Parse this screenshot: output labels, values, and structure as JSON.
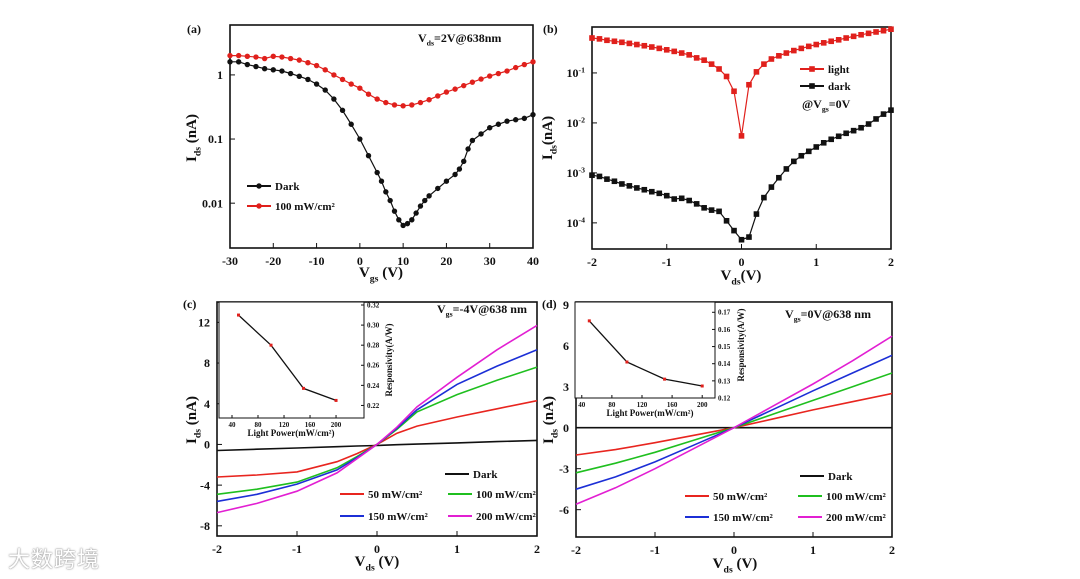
{
  "watermark": "大数跨境",
  "chart_data": [
    {
      "id": "a",
      "type": "line",
      "panel_label": "(a)",
      "annotation": "V_ds=2V@638nm",
      "xlabel": "V_gs (V)",
      "ylabel": "I_ds (nA)",
      "xlim": [
        -30,
        40
      ],
      "ylim": [
        0.002,
        6
      ],
      "yscale": "log",
      "xticks": [
        -30,
        -20,
        -10,
        0,
        10,
        20,
        30,
        40
      ],
      "xtick_labels": [
        "-30",
        "-20",
        "-10",
        "0",
        "10",
        "20",
        "30",
        "40"
      ],
      "yticks": [
        1,
        0.1,
        0.01
      ],
      "ytick_labels": [
        "1",
        "0.1",
        "0.01"
      ],
      "legend": "bottom-left",
      "series": [
        {
          "name": "Dark",
          "color": "#111111",
          "marker": "circle",
          "x": [
            -30,
            -28,
            -26,
            -24,
            -22,
            -20,
            -18,
            -16,
            -14,
            -12,
            -10,
            -8,
            -6,
            -4,
            -2,
            0,
            2,
            4,
            5,
            6,
            7,
            8,
            9,
            10,
            11,
            12,
            13,
            14,
            15,
            16,
            18,
            20,
            22,
            23,
            24,
            25,
            26,
            28,
            30,
            32,
            34,
            36,
            38,
            40
          ],
          "y": [
            1.6,
            1.6,
            1.45,
            1.35,
            1.25,
            1.2,
            1.15,
            1.05,
            0.95,
            0.85,
            0.72,
            0.58,
            0.42,
            0.28,
            0.17,
            0.1,
            0.055,
            0.03,
            0.022,
            0.015,
            0.011,
            0.0075,
            0.0055,
            0.0045,
            0.0048,
            0.0055,
            0.007,
            0.009,
            0.011,
            0.013,
            0.017,
            0.022,
            0.028,
            0.034,
            0.045,
            0.07,
            0.095,
            0.12,
            0.15,
            0.17,
            0.19,
            0.2,
            0.21,
            0.24
          ]
        },
        {
          "name": "100 mW/cm²",
          "color": "#e0201c",
          "marker": "circle",
          "x": [
            -30,
            -28,
            -26,
            -24,
            -22,
            -20,
            -18,
            -16,
            -14,
            -12,
            -10,
            -8,
            -6,
            -4,
            -2,
            0,
            2,
            4,
            6,
            8,
            10,
            12,
            14,
            16,
            18,
            20,
            22,
            24,
            26,
            28,
            30,
            32,
            34,
            36,
            38,
            40
          ],
          "y": [
            2.0,
            2.0,
            1.95,
            1.9,
            1.8,
            1.95,
            1.9,
            1.8,
            1.7,
            1.55,
            1.4,
            1.2,
            1.0,
            0.85,
            0.72,
            0.62,
            0.5,
            0.42,
            0.37,
            0.34,
            0.33,
            0.34,
            0.37,
            0.41,
            0.47,
            0.54,
            0.6,
            0.68,
            0.77,
            0.86,
            0.96,
            1.05,
            1.15,
            1.3,
            1.45,
            1.6
          ]
        }
      ]
    },
    {
      "id": "b",
      "type": "line",
      "panel_label": "(b)",
      "annotation": "@V_gs=0V",
      "xlabel": "V_ds(V)",
      "ylabel": "I_ds(nA)",
      "xlim": [
        -2,
        2
      ],
      "ylim": [
        3e-05,
        0.83
      ],
      "yscale": "log",
      "xticks": [
        -2,
        -1,
        0,
        1,
        2
      ],
      "xtick_labels": [
        "-2",
        "-1",
        "0",
        "1",
        "2"
      ],
      "yticks": [
        0.1,
        0.01,
        0.001,
        0.0001
      ],
      "ytick_labels": [
        "10^-1",
        "10^-2",
        "10^-3",
        "10^-4"
      ],
      "legend": "top-right",
      "series": [
        {
          "name": "light",
          "color": "#e0201c",
          "marker": "square",
          "x": [
            -2,
            -1.9,
            -1.8,
            -1.7,
            -1.6,
            -1.5,
            -1.4,
            -1.3,
            -1.2,
            -1.1,
            -1,
            -0.9,
            -0.8,
            -0.7,
            -0.6,
            -0.5,
            -0.4,
            -0.3,
            -0.2,
            -0.1,
            0,
            0.1,
            0.2,
            0.3,
            0.4,
            0.5,
            0.6,
            0.7,
            0.8,
            0.9,
            1,
            1.1,
            1.2,
            1.3,
            1.4,
            1.5,
            1.6,
            1.7,
            1.8,
            1.9,
            2
          ],
          "y": [
            0.5,
            0.48,
            0.45,
            0.43,
            0.41,
            0.39,
            0.37,
            0.35,
            0.33,
            0.31,
            0.29,
            0.27,
            0.25,
            0.23,
            0.2,
            0.18,
            0.15,
            0.12,
            0.085,
            0.043,
            0.0055,
            0.058,
            0.105,
            0.15,
            0.19,
            0.22,
            0.25,
            0.28,
            0.31,
            0.34,
            0.37,
            0.4,
            0.43,
            0.46,
            0.5,
            0.54,
            0.58,
            0.62,
            0.66,
            0.7,
            0.75
          ]
        },
        {
          "name": "dark",
          "color": "#111111",
          "marker": "square",
          "x": [
            -2,
            -1.9,
            -1.8,
            -1.7,
            -1.6,
            -1.5,
            -1.4,
            -1.3,
            -1.2,
            -1.1,
            -1,
            -0.9,
            -0.8,
            -0.7,
            -0.6,
            -0.5,
            -0.4,
            -0.3,
            -0.2,
            -0.1,
            0,
            0.1,
            0.2,
            0.3,
            0.4,
            0.5,
            0.6,
            0.7,
            0.8,
            0.9,
            1,
            1.1,
            1.2,
            1.3,
            1.4,
            1.5,
            1.6,
            1.7,
            1.8,
            1.9,
            2
          ],
          "y": [
            0.0009,
            0.00085,
            0.00075,
            0.00068,
            0.0006,
            0.00055,
            0.0005,
            0.00046,
            0.00042,
            0.00039,
            0.00035,
            0.0003,
            0.00031,
            0.00028,
            0.00024,
            0.0002,
            0.00018,
            0.00017,
            0.00011,
            7e-05,
            4.6e-05,
            5.2e-05,
            0.00015,
            0.00032,
            0.00052,
            0.0008,
            0.0012,
            0.0017,
            0.0022,
            0.0027,
            0.0033,
            0.004,
            0.0047,
            0.0054,
            0.0062,
            0.007,
            0.008,
            0.0095,
            0.012,
            0.015,
            0.018
          ]
        }
      ]
    },
    {
      "id": "c",
      "type": "line",
      "panel_label": "(c)",
      "annotation": "V_gs=-4V@638 nm",
      "xlabel": "V_ds (V)",
      "ylabel": "I_ds (nA)",
      "xlim": [
        -2,
        2
      ],
      "ylim": [
        -9,
        14
      ],
      "xticks": [
        -2,
        -1,
        0,
        1,
        2
      ],
      "xtick_labels": [
        "-2",
        "-1",
        "0",
        "1",
        "2"
      ],
      "yticks": [
        12,
        8,
        4,
        0,
        -4,
        -8
      ],
      "ytick_labels": [
        "12",
        "8",
        "4",
        "0",
        "-4",
        "-8"
      ],
      "legend": "bottom-right",
      "x": [
        -2,
        -1.5,
        -1,
        -0.5,
        -0.25,
        0,
        0.25,
        0.5,
        1,
        1.5,
        2
      ],
      "series": [
        {
          "name": "Dark",
          "color": "#111111",
          "y": [
            -0.6,
            -0.47,
            -0.35,
            -0.22,
            -0.15,
            -0.1,
            -0.03,
            0.03,
            0.15,
            0.28,
            0.4
          ]
        },
        {
          "name": "50 mW/cm²",
          "color": "#e8251f",
          "y": [
            -3.2,
            -3.0,
            -2.7,
            -1.7,
            -0.9,
            0,
            1.1,
            1.8,
            2.7,
            3.5,
            4.3
          ]
        },
        {
          "name": "100 mW/cm²",
          "color": "#1fbf1f",
          "y": [
            -4.9,
            -4.4,
            -3.7,
            -2.3,
            -1.2,
            0,
            1.5,
            3.2,
            4.9,
            6.3,
            7.6
          ]
        },
        {
          "name": "150 mW/cm²",
          "color": "#1c2fd6",
          "y": [
            -5.6,
            -4.9,
            -3.9,
            -2.5,
            -1.3,
            0,
            1.6,
            3.4,
            5.9,
            7.7,
            9.3
          ]
        },
        {
          "name": "200 mW/cm²",
          "color": "#e21fd2",
          "y": [
            -6.7,
            -5.8,
            -4.6,
            -2.8,
            -1.4,
            0,
            1.7,
            3.7,
            6.6,
            9.3,
            11.7
          ]
        }
      ],
      "inset": {
        "type": "line",
        "xlabel": "Light Power(mW/cm²)",
        "ylabel": "Responsivity(A/W)",
        "xlim": [
          20,
          243
        ],
        "ylim": [
          0.2075,
          0.323
        ],
        "xticks": [
          40,
          80,
          120,
          160,
          200
        ],
        "xtick_labels": [
          "40",
          "80",
          "120",
          "160",
          "200"
        ],
        "yticks": [
          0.22,
          0.24,
          0.26,
          0.28,
          0.3,
          0.32
        ],
        "ytick_labels": [
          "0.22",
          "0.24",
          "0.26",
          "0.28",
          "0.30",
          "0.32"
        ],
        "x": [
          50,
          100,
          150,
          200
        ],
        "y": [
          0.31,
          0.28,
          0.237,
          0.225
        ]
      }
    },
    {
      "id": "d",
      "type": "line",
      "panel_label": "(d)",
      "annotation": "V_gs=0V@638 nm",
      "xlabel": "V_ds (V)",
      "ylabel": "I_ds (nA)",
      "xlim": [
        -2,
        2
      ],
      "ylim": [
        -8,
        9.2
      ],
      "xticks": [
        -2,
        -1,
        0,
        1,
        2
      ],
      "xtick_labels": [
        "-2",
        "-1",
        "0",
        "1",
        "2"
      ],
      "yticks": [
        9,
        6,
        3,
        0,
        -3,
        -6
      ],
      "ytick_labels": [
        "9",
        "6",
        "3",
        "0",
        "-3",
        "-6"
      ],
      "legend": "bottom-right",
      "x": [
        -2,
        -1.5,
        -1,
        -0.5,
        0,
        0.5,
        1,
        1.5,
        2
      ],
      "series": [
        {
          "name": "Dark",
          "color": "#111111",
          "y": [
            0,
            0,
            0,
            0,
            0,
            0,
            0,
            0,
            0
          ]
        },
        {
          "name": "50 mW/cm²",
          "color": "#e8251f",
          "y": [
            -2.0,
            -1.6,
            -1.1,
            -0.55,
            0,
            0.65,
            1.3,
            1.9,
            2.5
          ]
        },
        {
          "name": "100 mW/cm²",
          "color": "#1fbf1f",
          "y": [
            -3.3,
            -2.6,
            -1.8,
            -0.9,
            0,
            1.0,
            2.0,
            3.0,
            4.0
          ]
        },
        {
          "name": "150 mW/cm²",
          "color": "#1c2fd6",
          "y": [
            -4.5,
            -3.6,
            -2.5,
            -1.25,
            0,
            1.35,
            2.7,
            4.0,
            5.3
          ]
        },
        {
          "name": "200 mW/cm²",
          "color": "#e21fd2",
          "y": [
            -5.6,
            -4.4,
            -3.0,
            -1.5,
            0,
            1.6,
            3.2,
            4.9,
            6.7
          ]
        }
      ],
      "inset": {
        "type": "line",
        "xlabel": "Light Power(mW/cm²)",
        "ylabel": "Responsivity(A/W)",
        "xlim": [
          31,
          217
        ],
        "ylim": [
          0.12,
          0.176
        ],
        "xticks": [
          40,
          80,
          120,
          160,
          200
        ],
        "xtick_labels": [
          "40",
          "80",
          "120",
          "160",
          "200"
        ],
        "yticks": [
          0.12,
          0.13,
          0.14,
          0.15,
          0.16,
          0.17
        ],
        "ytick_labels": [
          "0.12",
          "0.13",
          "0.14",
          "0.15",
          "0.16",
          "0.17"
        ],
        "x": [
          50,
          100,
          150,
          200
        ],
        "y": [
          0.165,
          0.141,
          0.131,
          0.127
        ]
      }
    }
  ]
}
